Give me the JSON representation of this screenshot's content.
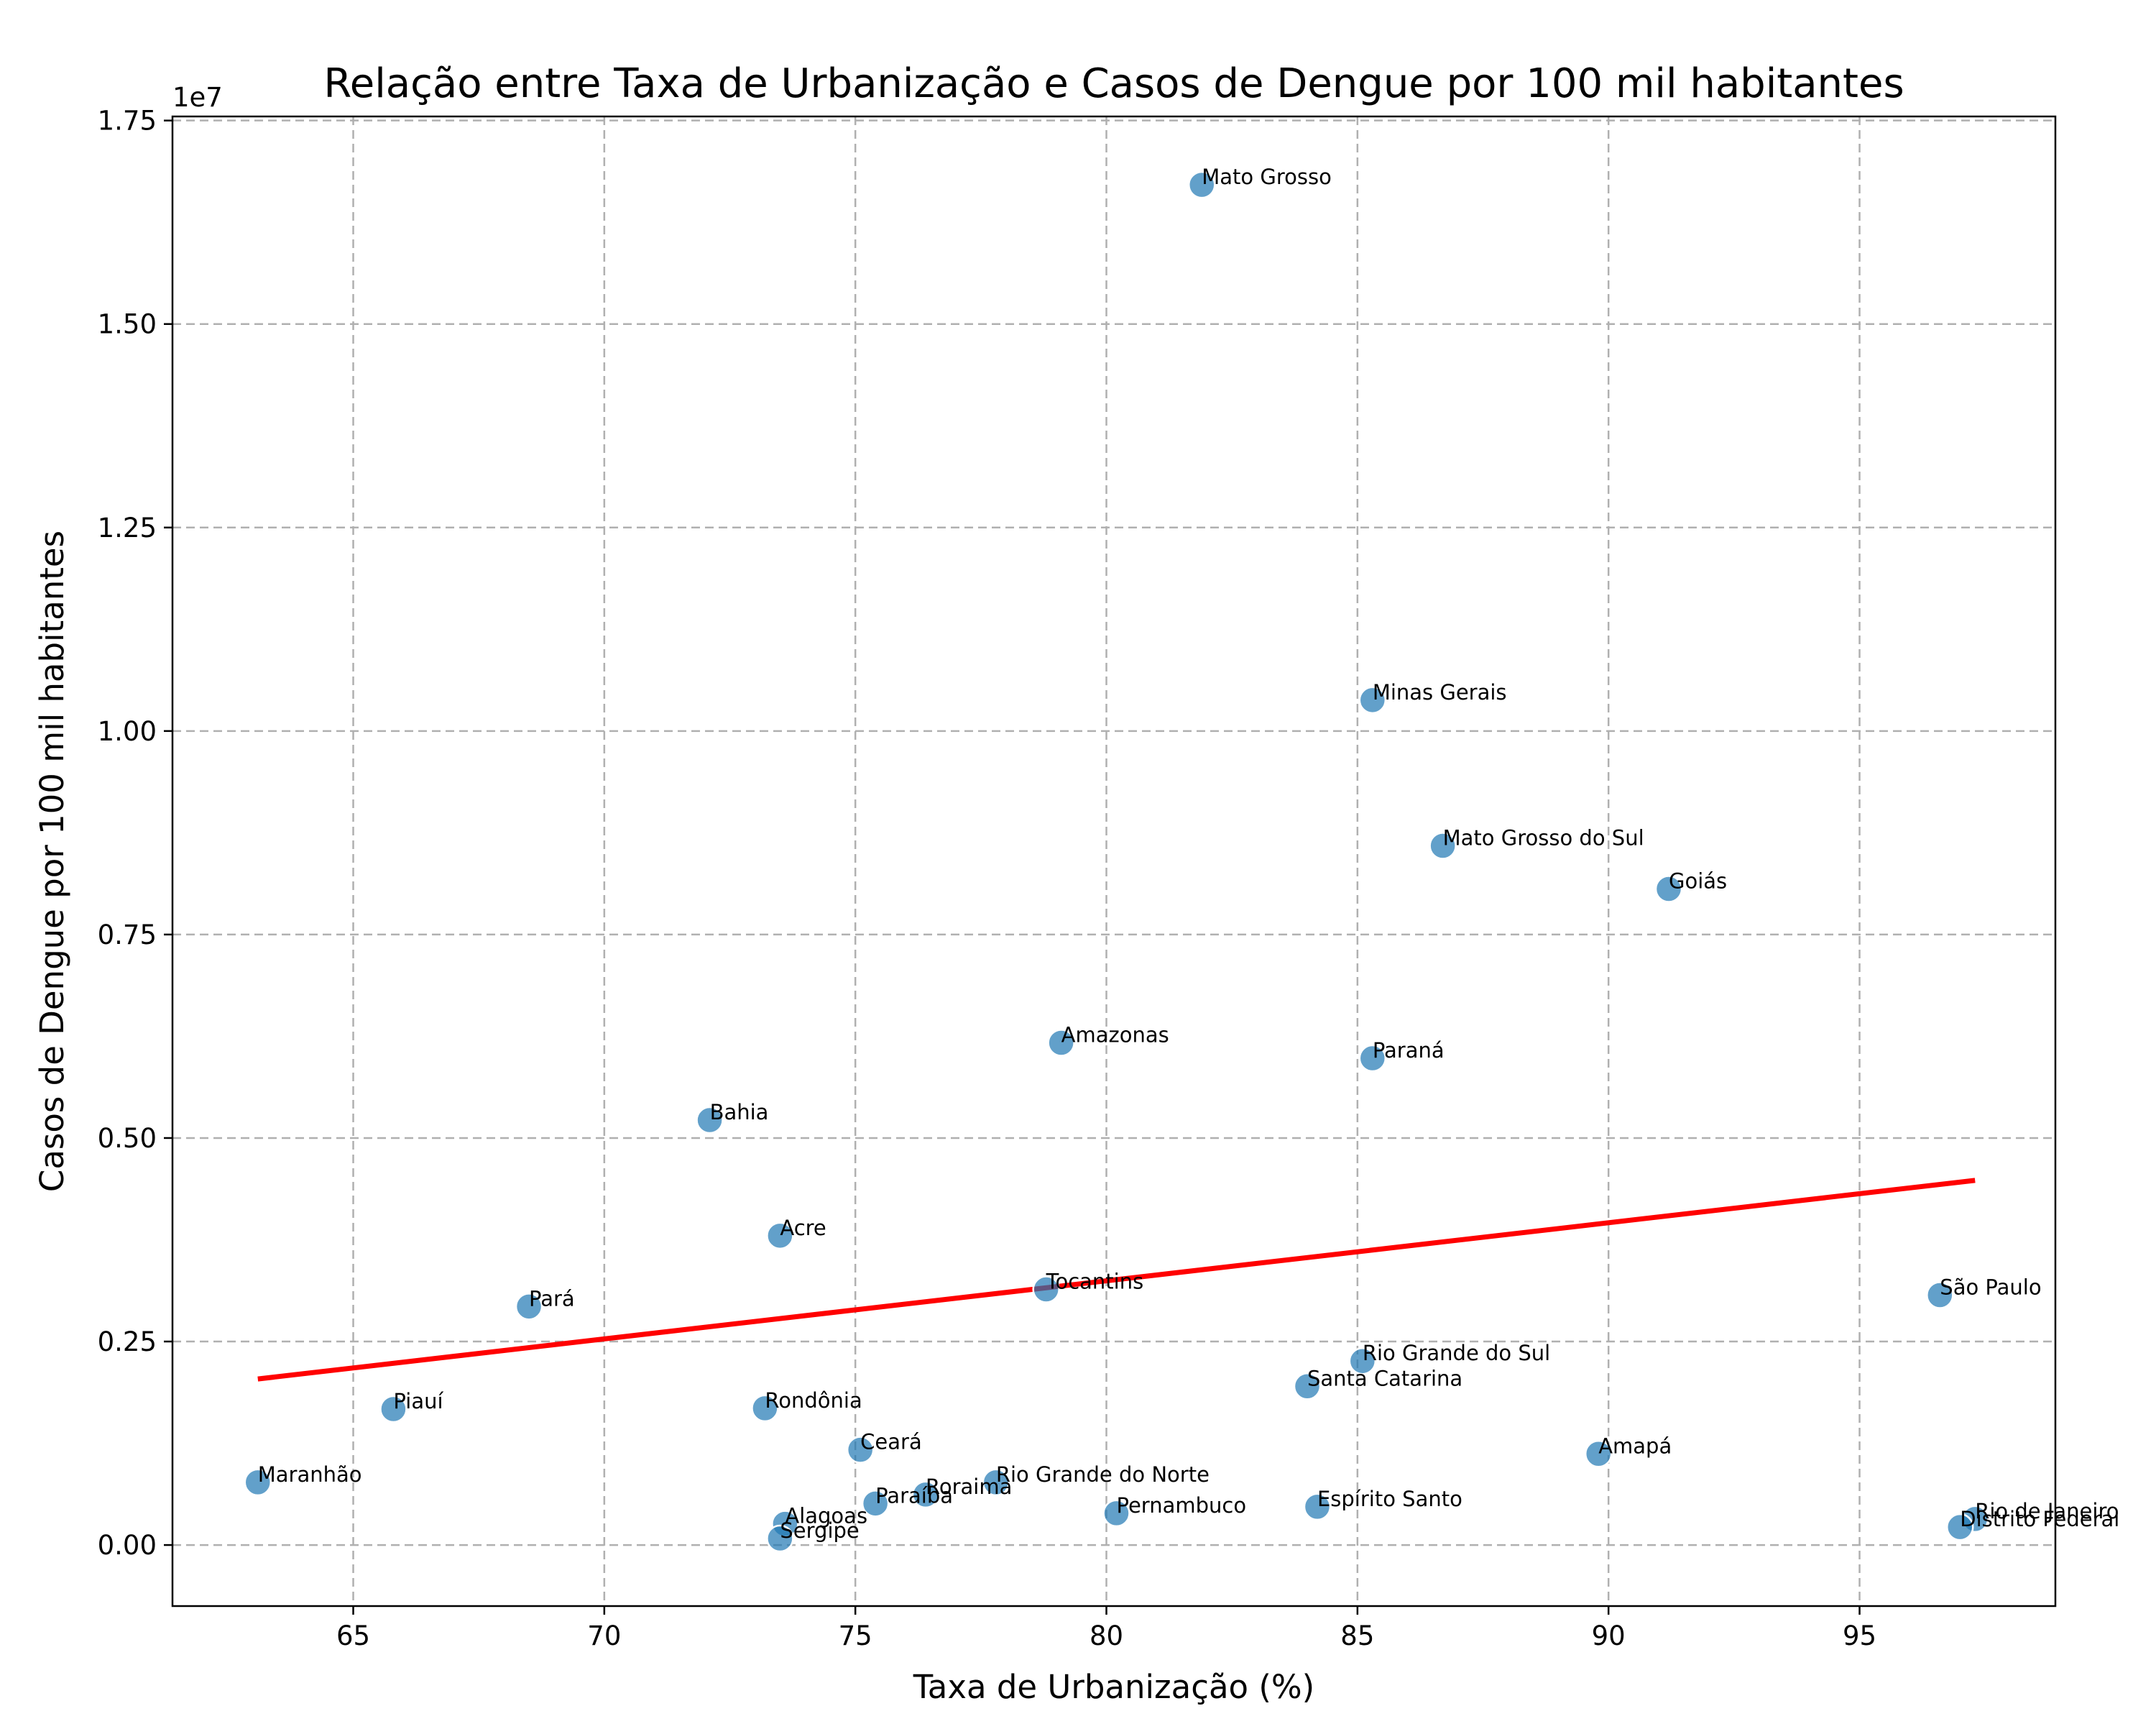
{
  "chart_data": {
    "type": "scatter",
    "title": "Relação entre Taxa de Urbanização e Casos de Dengue por 100 mil habitantes",
    "xlabel": "Taxa de Urbanização (%)",
    "ylabel": "Casos de Dengue por 100 mil habitantes",
    "y_offset_label": "1e7",
    "xlim": [
      61.4,
      98.9
    ],
    "ylim": [
      -750000,
      17550000
    ],
    "x_ticks": [
      65,
      70,
      75,
      80,
      85,
      90,
      95
    ],
    "x_tick_labels": [
      "65",
      "70",
      "75",
      "80",
      "85",
      "90",
      "95"
    ],
    "y_ticks": [
      0,
      2500000,
      5000000,
      7500000,
      10000000,
      12500000,
      15000000,
      17500000
    ],
    "y_tick_labels": [
      "0.00",
      "0.25",
      "0.50",
      "0.75",
      "1.00",
      "1.25",
      "1.50",
      "1.75"
    ],
    "grid": true,
    "legend": "none",
    "point_color": "#1f77b4",
    "trend_color": "#ff0000",
    "points": [
      {
        "label": "Mato Grosso",
        "x": 81.9,
        "y": 16710000
      },
      {
        "label": "Minas Gerais",
        "x": 85.3,
        "y": 10380000
      },
      {
        "label": "Mato Grosso do Sul",
        "x": 86.7,
        "y": 8590000
      },
      {
        "label": "Goiás",
        "x": 91.2,
        "y": 8060000
      },
      {
        "label": "Amazonas",
        "x": 79.1,
        "y": 6170000
      },
      {
        "label": "Paraná",
        "x": 85.3,
        "y": 5980000
      },
      {
        "label": "Bahia",
        "x": 72.1,
        "y": 5220000
      },
      {
        "label": "Acre",
        "x": 73.5,
        "y": 3800000
      },
      {
        "label": "Tocantins",
        "x": 78.8,
        "y": 3140000
      },
      {
        "label": "São Paulo",
        "x": 96.6,
        "y": 3070000
      },
      {
        "label": "Pará",
        "x": 68.5,
        "y": 2930000
      },
      {
        "label": "Rio Grande do Sul",
        "x": 85.1,
        "y": 2260000
      },
      {
        "label": "Santa Catarina",
        "x": 84.0,
        "y": 1950000
      },
      {
        "label": "Rondônia",
        "x": 73.2,
        "y": 1680000
      },
      {
        "label": "Piauí",
        "x": 65.8,
        "y": 1670000
      },
      {
        "label": "Ceará",
        "x": 75.1,
        "y": 1170000
      },
      {
        "label": "Amapá",
        "x": 89.8,
        "y": 1120000
      },
      {
        "label": "Maranhão",
        "x": 63.1,
        "y": 770000
      },
      {
        "label": "Rio Grande do Norte",
        "x": 77.8,
        "y": 770000
      },
      {
        "label": "Roraima",
        "x": 76.4,
        "y": 620000
      },
      {
        "label": "Paraíba",
        "x": 75.4,
        "y": 510000
      },
      {
        "label": "Espírito Santo",
        "x": 84.2,
        "y": 470000
      },
      {
        "label": "Pernambuco",
        "x": 80.2,
        "y": 390000
      },
      {
        "label": "Rio de Janeiro",
        "x": 97.3,
        "y": 320000
      },
      {
        "label": "Alagoas",
        "x": 73.6,
        "y": 260000
      },
      {
        "label": "Distrito Federal",
        "x": 97.0,
        "y": 220000
      },
      {
        "label": "Sergipe",
        "x": 73.5,
        "y": 80000
      }
    ],
    "trend_line": {
      "x": [
        63.1,
        97.3
      ],
      "y": [
        2040000,
        4480000
      ]
    }
  }
}
